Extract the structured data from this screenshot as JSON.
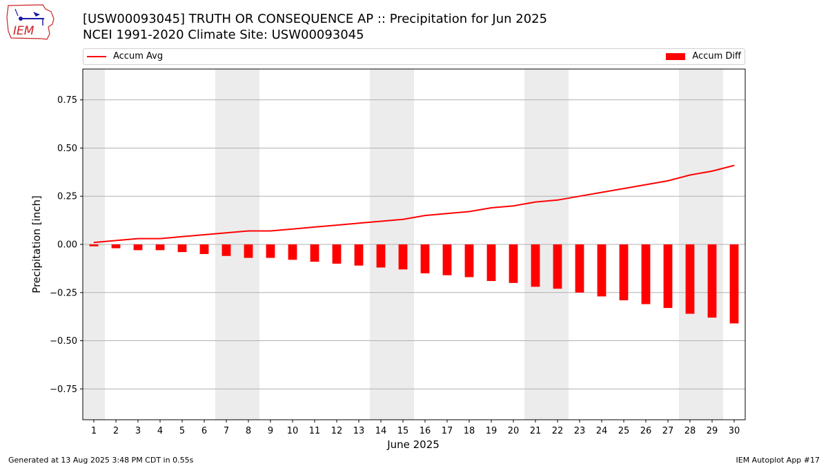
{
  "title_line1": "[USW00093045] TRUTH OR CONSEQUENCE AP :: Precipitation for Jun 2025",
  "title_line2": "NCEI 1991-2020 Climate Site: USW00093045",
  "footer_left": "Generated at 13 Aug 2025 3:48 PM CDT in 0.55s",
  "footer_right": "IEM Autoplot App #17",
  "logo_text": "IEM",
  "colors": {
    "series": "#ff0000",
    "weekend_band": "#ececec",
    "grid": "#b0b0b0",
    "logo": "#cc2222",
    "logo_accent": "#1a1aa8"
  },
  "chart_data": {
    "type": "bar",
    "xlabel": "June 2025",
    "ylabel": "Precipitation [inch]",
    "ylim": [
      -0.91,
      0.91
    ],
    "xlim": [
      0.5,
      30.5
    ],
    "grid": true,
    "legend_placement": "top",
    "yticks": [
      -0.75,
      -0.5,
      -0.25,
      0.0,
      0.25,
      0.5,
      0.75
    ],
    "ytick_labels": [
      "−0.75",
      "−0.50",
      "−0.25",
      "0.00",
      "0.25",
      "0.50",
      "0.75"
    ],
    "categories": [
      "1",
      "2",
      "3",
      "4",
      "5",
      "6",
      "7",
      "8",
      "9",
      "10",
      "11",
      "12",
      "13",
      "14",
      "15",
      "16",
      "17",
      "18",
      "19",
      "20",
      "21",
      "22",
      "23",
      "24",
      "25",
      "26",
      "27",
      "28",
      "29",
      "30"
    ],
    "weekend_spans": [
      [
        0.5,
        1.5
      ],
      [
        6.5,
        8.5
      ],
      [
        13.5,
        15.5
      ],
      [
        20.5,
        22.5
      ],
      [
        27.5,
        29.5
      ]
    ],
    "series": [
      {
        "name": "Accum Avg",
        "kind": "line",
        "values": [
          0.01,
          0.02,
          0.03,
          0.03,
          0.04,
          0.05,
          0.06,
          0.07,
          0.07,
          0.08,
          0.09,
          0.1,
          0.11,
          0.12,
          0.13,
          0.15,
          0.16,
          0.17,
          0.19,
          0.2,
          0.22,
          0.23,
          0.25,
          0.27,
          0.29,
          0.31,
          0.33,
          0.36,
          0.38,
          0.41
        ]
      },
      {
        "name": "Accum Diff",
        "kind": "bar",
        "values": [
          -0.01,
          -0.02,
          -0.03,
          -0.03,
          -0.04,
          -0.05,
          -0.06,
          -0.07,
          -0.07,
          -0.08,
          -0.09,
          -0.1,
          -0.11,
          -0.12,
          -0.13,
          -0.15,
          -0.16,
          -0.17,
          -0.19,
          -0.2,
          -0.22,
          -0.23,
          -0.25,
          -0.27,
          -0.29,
          -0.31,
          -0.33,
          -0.36,
          -0.38,
          -0.41
        ]
      }
    ]
  }
}
